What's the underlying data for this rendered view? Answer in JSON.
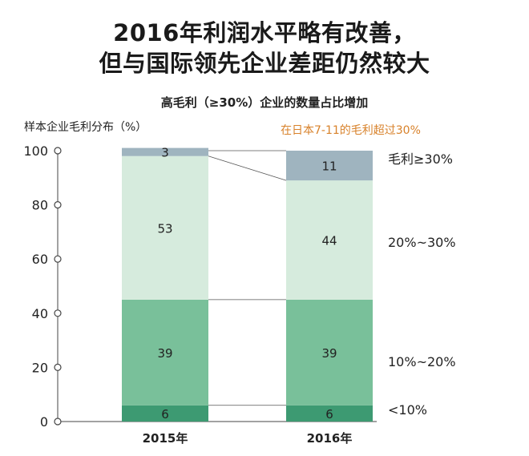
{
  "title_line1": "2016年利润水平略有改善，",
  "title_line2": "但与国际领先企业差距仍然较大",
  "subtitle": "高毛利（≥30%）企业的数量占比增加",
  "ylabel": "样本企业毛利分布（%）",
  "note": "在日本7-11的毛利超过30%",
  "colors": {
    "lt10": "#3d9a72",
    "b10_20": "#79c09a",
    "b20_30": "#d6ebdd",
    "gt30": "#9fb4bf"
  },
  "chart_data": {
    "type": "bar",
    "stacked": true,
    "categories": [
      "2015年",
      "2016年"
    ],
    "series": [
      {
        "name": "<10%",
        "values": [
          6,
          6
        ]
      },
      {
        "name": "10%~20%",
        "values": [
          39,
          39
        ]
      },
      {
        "name": "20%~30%",
        "values": [
          53,
          44
        ]
      },
      {
        "name": "毛利≥30%",
        "values": [
          3,
          11
        ]
      }
    ],
    "ylim": [
      0,
      100
    ],
    "yticks": [
      "0",
      "20",
      "40",
      "60",
      "80",
      "100"
    ],
    "legend_position": "right"
  }
}
